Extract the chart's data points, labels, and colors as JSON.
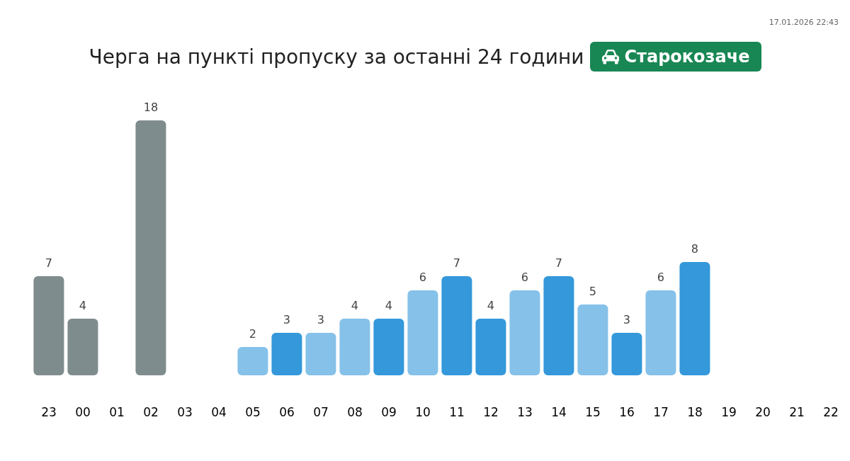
{
  "chart_data": {
    "type": "bar",
    "title": "Черга на пункті пропуску за останні 24 години",
    "subtitle": "Старокозаче",
    "categories": [
      "23",
      "00",
      "01",
      "02",
      "03",
      "04",
      "05",
      "06",
      "07",
      "08",
      "09",
      "10",
      "11",
      "12",
      "13",
      "14",
      "15",
      "16",
      "17",
      "18",
      "19",
      "20",
      "21",
      "22"
    ],
    "values": [
      7,
      4,
      null,
      18,
      null,
      null,
      2,
      3,
      3,
      4,
      4,
      6,
      7,
      4,
      6,
      7,
      5,
      3,
      6,
      8,
      null,
      null,
      null,
      null
    ],
    "colors": [
      "#7f8c8d",
      "#7f8c8d",
      null,
      "#7f8c8d",
      null,
      null,
      "#85c1e9",
      "#3498db",
      "#85c1e9",
      "#85c1e9",
      "#3498db",
      "#85c1e9",
      "#3498db",
      "#3498db",
      "#85c1e9",
      "#3498db",
      "#85c1e9",
      "#3498db",
      "#85c1e9",
      "#3498db",
      null,
      null,
      null,
      null
    ],
    "data_labels": true,
    "annotations": [
      "17.01.2026 22:43"
    ]
  }
}
